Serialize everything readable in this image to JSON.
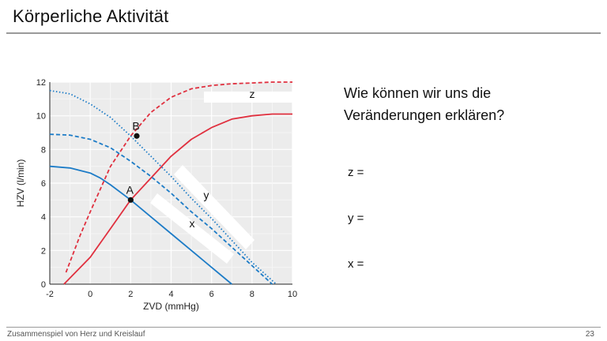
{
  "slide": {
    "title": "Körperliche Aktivität",
    "footer": "Zusammenspiel von Herz und Kreislauf",
    "page_number": "23"
  },
  "question": {
    "line1": "Wie können wir uns die",
    "line2": "Veränderungen erklären?"
  },
  "answers": {
    "z": "z =",
    "y": "y =",
    "x": "x ="
  },
  "chart_data": {
    "type": "line",
    "xlabel": "ZVD (mmHg)",
    "ylabel": "HZV (l/min)",
    "xlim": [
      -2,
      10
    ],
    "ylim": [
      0,
      12
    ],
    "xticks": [
      "-2",
      "0",
      "2",
      "4",
      "6",
      "8",
      "10"
    ],
    "yticks": [
      "0",
      "2",
      "4",
      "6",
      "8",
      "10",
      "12"
    ],
    "grid": true,
    "points": [
      {
        "label": "A",
        "x": 2.0,
        "y": 5.0
      },
      {
        "label": "B",
        "x": 2.3,
        "y": 8.8
      }
    ],
    "annotations": [
      "z",
      "y",
      "x"
    ],
    "series": [
      {
        "style": "solid",
        "color": "#e0303f",
        "x": [
          -1.3,
          0,
          1,
          2,
          3,
          4,
          5,
          6,
          7,
          8,
          9,
          10
        ],
        "y": [
          0,
          1.6,
          3.3,
          5.0,
          6.3,
          7.6,
          8.6,
          9.3,
          9.8,
          10.0,
          10.1,
          10.1
        ]
      },
      {
        "style": "dashed",
        "color": "#e0303f",
        "x": [
          -1.2,
          -0.5,
          0,
          1,
          2,
          3,
          4,
          5,
          6,
          7,
          8,
          9,
          10
        ],
        "y": [
          0.7,
          2.9,
          4.3,
          7.0,
          8.8,
          10.2,
          11.1,
          11.6,
          11.8,
          11.9,
          11.95,
          12.0,
          12.0
        ]
      },
      {
        "style": "solid",
        "color": "#1d7cc7",
        "x": [
          -2,
          -1,
          0,
          0.5,
          1,
          2,
          3,
          4,
          5,
          6,
          7
        ],
        "y": [
          7.0,
          6.9,
          6.6,
          6.3,
          5.9,
          5.0,
          4.0,
          3.0,
          2.0,
          1.0,
          0
        ]
      },
      {
        "style": "dashed",
        "color": "#1d7cc7",
        "x": [
          -2,
          -1,
          0,
          1,
          2,
          3,
          4,
          5,
          6,
          7,
          8,
          9
        ],
        "y": [
          8.9,
          8.85,
          8.6,
          8.1,
          7.3,
          6.4,
          5.4,
          4.3,
          3.3,
          2.2,
          1.1,
          0
        ]
      },
      {
        "style": "dotted",
        "color": "#1d7cc7",
        "x": [
          -2,
          -1,
          0,
          1,
          2,
          3,
          4,
          5,
          6,
          7,
          8,
          9.2
        ],
        "y": [
          11.5,
          11.3,
          10.7,
          9.9,
          8.8,
          7.6,
          6.4,
          5.1,
          3.9,
          2.6,
          1.3,
          0
        ]
      }
    ]
  }
}
